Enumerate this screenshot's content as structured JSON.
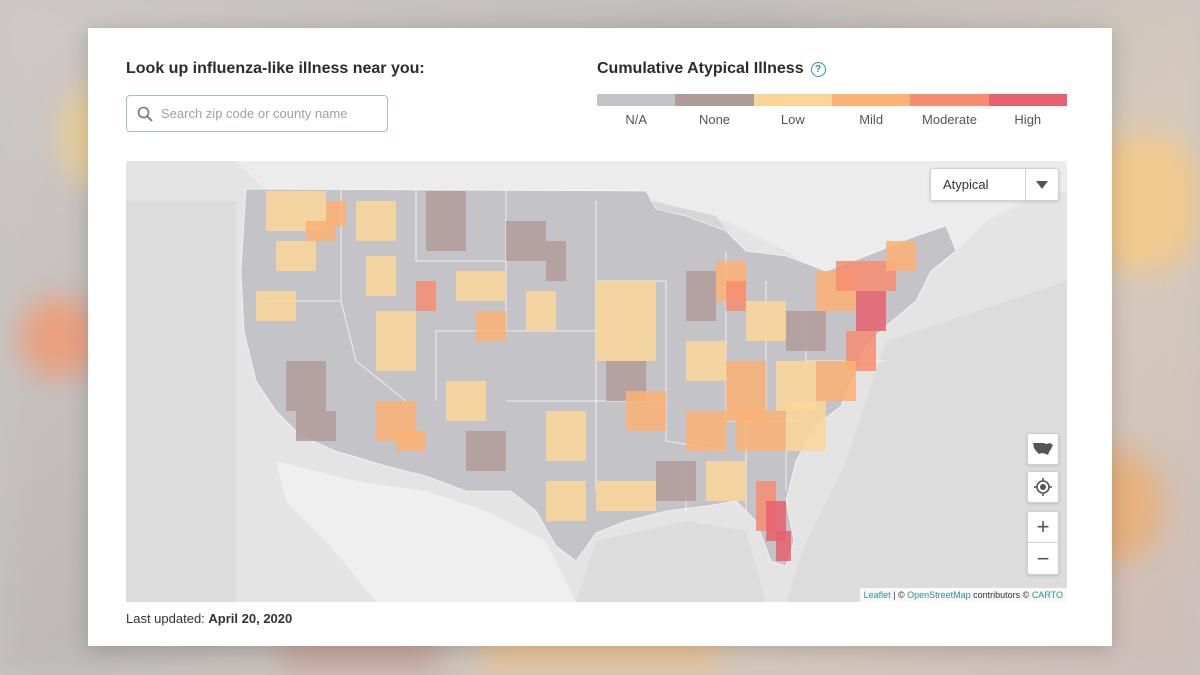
{
  "lookup": {
    "title": "Look up influenza-like illness near you:",
    "placeholder": "Search zip code or county name"
  },
  "legend": {
    "title": "Cumulative Atypical Illness",
    "items": [
      {
        "label": "N/A",
        "color": "#c4c3c8"
      },
      {
        "label": "None",
        "color": "#b19c99"
      },
      {
        "label": "Low",
        "color": "#fcd699"
      },
      {
        "label": "Mild",
        "color": "#fbb274"
      },
      {
        "label": "Moderate",
        "color": "#f78d70"
      },
      {
        "label": "High",
        "color": "#e8606e"
      }
    ]
  },
  "map": {
    "layer_select": "Atypical",
    "attribution": {
      "leaflet": "Leaflet",
      "sep": " | © ",
      "osm": "OpenStreetMap",
      "contributors": " contributors © ",
      "carto": "CARTO"
    }
  },
  "footer": {
    "updated_label": "Last updated:",
    "updated_date": "April 20, 2020"
  }
}
